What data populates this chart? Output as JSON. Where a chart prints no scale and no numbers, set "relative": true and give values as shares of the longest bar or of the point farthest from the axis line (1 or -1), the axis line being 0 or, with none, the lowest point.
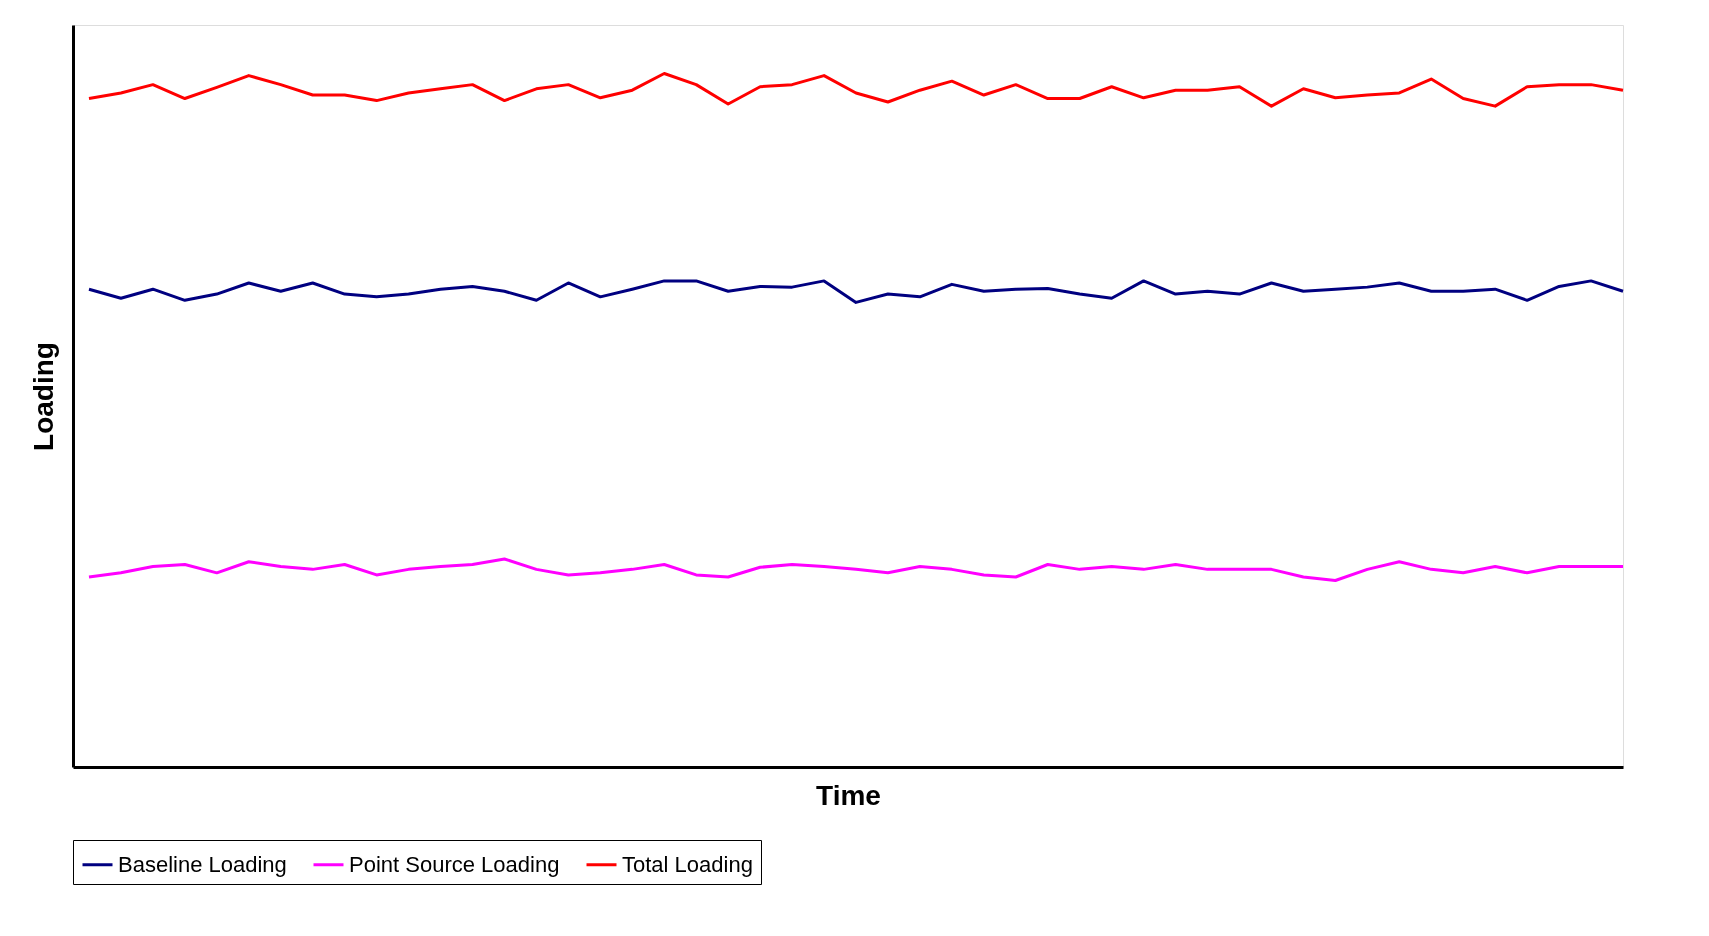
{
  "chart_data": {
    "type": "line",
    "relative": true,
    "xlabel": "Time",
    "ylabel": "Loading",
    "categories": [
      null,
      null,
      null,
      null,
      null,
      null,
      null,
      null,
      null,
      null,
      null,
      null,
      null,
      null,
      null,
      null,
      null,
      null,
      null,
      null,
      null,
      null,
      null,
      null,
      null,
      null,
      null,
      null,
      null,
      null,
      null,
      null,
      null,
      null,
      null,
      null,
      null,
      null,
      null,
      null,
      null,
      null,
      null,
      null,
      null,
      null,
      null,
      null,
      null
    ],
    "series": [
      {
        "name": "Baseline Loading",
        "color": "#000080",
        "values": [
          0.689,
          0.676,
          0.689,
          0.673,
          0.682,
          0.698,
          0.686,
          0.698,
          0.682,
          0.678,
          0.682,
          0.689,
          0.693,
          0.686,
          0.673,
          0.698,
          0.678,
          0.689,
          0.701,
          0.701,
          0.686,
          0.693,
          0.692,
          0.701,
          0.67,
          0.682,
          0.678,
          0.696,
          0.686,
          0.689,
          0.69,
          0.682,
          0.676,
          0.701,
          0.682,
          0.686,
          0.682,
          0.698,
          0.686,
          0.689,
          0.692,
          0.698,
          0.686,
          0.686,
          0.689,
          0.673,
          0.693,
          0.701,
          0.686
        ]
      },
      {
        "name": "Point Source Loading",
        "color": "#ff00ff",
        "values": [
          0.274,
          0.28,
          0.289,
          0.292,
          0.28,
          0.296,
          0.289,
          0.285,
          0.292,
          0.277,
          0.285,
          0.289,
          0.292,
          0.3,
          0.285,
          0.277,
          0.28,
          0.285,
          0.292,
          0.277,
          0.274,
          0.288,
          0.292,
          0.289,
          0.285,
          0.28,
          0.289,
          0.285,
          0.277,
          0.274,
          0.292,
          0.285,
          0.289,
          0.285,
          0.292,
          0.285,
          0.285,
          0.285,
          0.274,
          0.269,
          0.285,
          0.296,
          0.285,
          0.28,
          0.289,
          0.28,
          0.289,
          0.289,
          0.289
        ]
      },
      {
        "name": "Total Loading",
        "color": "#ff0000",
        "values": [
          0.964,
          0.972,
          0.984,
          0.964,
          0.98,
          0.997,
          0.984,
          0.969,
          0.969,
          0.961,
          0.972,
          0.978,
          0.984,
          0.961,
          0.978,
          0.984,
          0.965,
          0.976,
          1,
          0.984,
          0.956,
          0.981,
          0.984,
          0.997,
          0.972,
          0.959,
          0.976,
          0.989,
          0.969,
          0.984,
          0.964,
          0.964,
          0.981,
          0.965,
          0.976,
          0.976,
          0.981,
          0.953,
          0.978,
          0.965,
          0.969,
          0.972,
          0.992,
          0.964,
          0.953,
          0.981,
          0.984,
          0.984,
          0.976
        ]
      }
    ],
    "legend": "bottom",
    "grid": false,
    "tick_labels": false,
    "marker": "none",
    "line_style": "solid"
  }
}
